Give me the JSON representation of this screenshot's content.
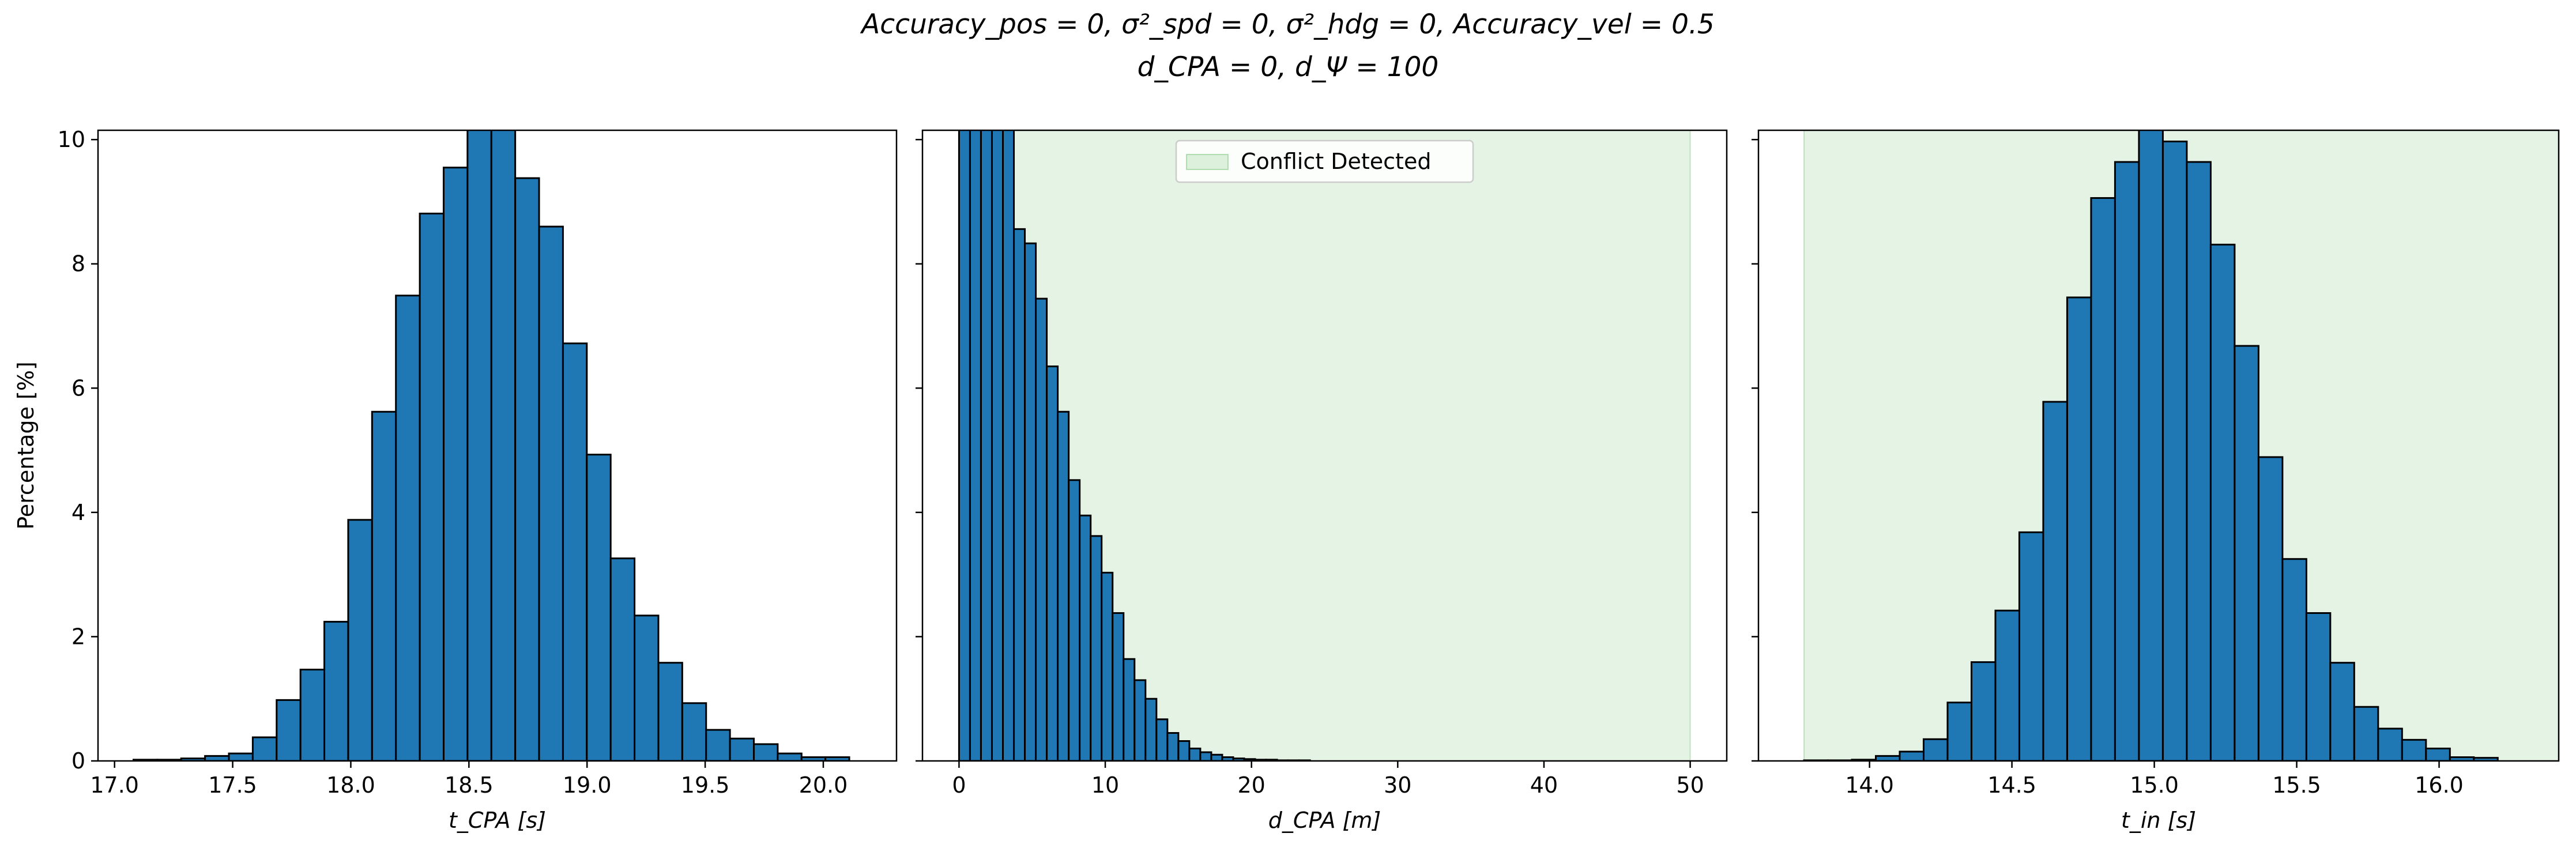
{
  "figure": {
    "title_line1": "Accuracy_pos = 0, σ²_spd = 0, σ²_hdg = 0, Accuracy_vel = 0.5",
    "title_line2": "d_CPA = 0, d_Ψ = 100"
  },
  "colors": {
    "bar": "#1f77b4",
    "bar_edge": "#000000",
    "conflict_fill": "#2ca02c"
  },
  "chart_data": [
    {
      "type": "bar",
      "xlabel": "t_CPA [s]",
      "ylabel": "Percentage [%]",
      "xlim": [
        16.93,
        20.31
      ],
      "ylim": [
        0,
        10.15
      ],
      "xticks": [
        17.0,
        17.5,
        18.0,
        18.5,
        19.0,
        19.5,
        20.0
      ],
      "xtick_labels": [
        "17.0",
        "17.5",
        "18.0",
        "18.5",
        "19.0",
        "19.5",
        "20.0"
      ],
      "yticks": [
        0,
        2,
        4,
        6,
        8,
        10
      ],
      "ytick_labels": [
        "0",
        "2",
        "4",
        "6",
        "8",
        "10"
      ],
      "bins": {
        "start": 17.08,
        "width": 0.101,
        "values": [
          0.02,
          0.02,
          0.04,
          0.08,
          0.12,
          0.38,
          0.98,
          1.47,
          2.24,
          3.88,
          5.62,
          7.49,
          8.81,
          9.55,
          10.2,
          10.2,
          9.38,
          8.6,
          6.72,
          4.93,
          3.26,
          2.34,
          1.58,
          0.93,
          0.5,
          0.36,
          0.27,
          0.12,
          0.06,
          0.06
        ]
      }
    },
    {
      "type": "bar",
      "xlabel": "d_CPA [m]",
      "xlim": [
        -2.5,
        52.5
      ],
      "ylim": [
        0,
        10.15
      ],
      "xticks": [
        0,
        10,
        20,
        30,
        40,
        50
      ],
      "xtick_labels": [
        "0",
        "10",
        "20",
        "30",
        "40",
        "50"
      ],
      "yticks": [
        0,
        2,
        4,
        6,
        8,
        10
      ],
      "legend": {
        "label": "Conflict Detected",
        "placement": "upper center"
      },
      "conflict_region": [
        0,
        50
      ],
      "bins": {
        "start": 0,
        "width": 0.75,
        "values": [
          10.2,
          10.2,
          10.2,
          10.2,
          10.2,
          8.56,
          8.33,
          7.44,
          6.35,
          5.62,
          4.52,
          3.95,
          3.62,
          3.03,
          2.38,
          1.64,
          1.3,
          1.0,
          0.67,
          0.45,
          0.32,
          0.2,
          0.14,
          0.1,
          0.06,
          0.04,
          0.03,
          0.02,
          0.02,
          0.01,
          0.01,
          0.01
        ]
      }
    },
    {
      "type": "bar",
      "xlabel": "t_in [s]",
      "xlim": [
        13.61,
        16.42
      ],
      "ylim": [
        0,
        10.15
      ],
      "xticks": [
        14.0,
        14.5,
        15.0,
        15.5,
        16.0
      ],
      "xtick_labels": [
        "14.0",
        "14.5",
        "15.0",
        "15.5",
        "16.0"
      ],
      "yticks": [
        0,
        2,
        4,
        6,
        8,
        10
      ],
      "conflict_region": [
        13.77,
        16.45
      ],
      "bins": {
        "start": 13.77,
        "width": 0.084,
        "values": [
          0.01,
          0.01,
          0.02,
          0.08,
          0.15,
          0.35,
          0.94,
          1.59,
          2.42,
          3.68,
          5.78,
          7.46,
          9.06,
          9.64,
          10.2,
          9.97,
          9.64,
          8.31,
          6.68,
          4.89,
          3.25,
          2.38,
          1.58,
          0.87,
          0.52,
          0.34,
          0.2,
          0.06,
          0.05
        ]
      }
    }
  ]
}
